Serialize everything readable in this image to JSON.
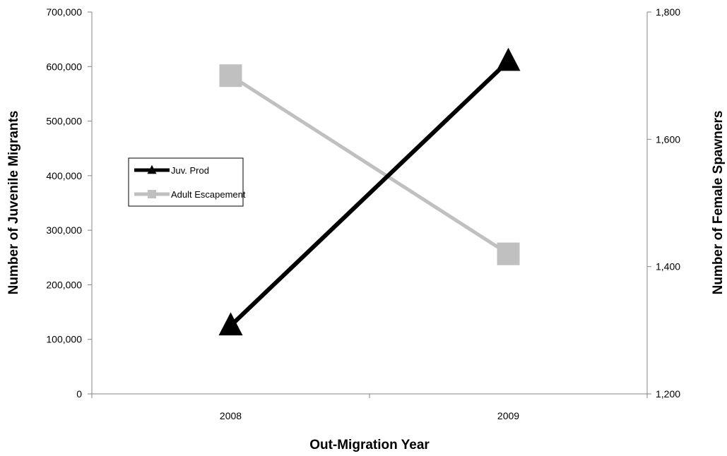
{
  "chart_data": {
    "type": "line",
    "x": [
      "2008",
      "2009"
    ],
    "xlabel": "Out-Migration Year",
    "ylabel_left": "Number of Juvenile Migrants",
    "ylabel_right": "Number of Female Spawners",
    "ylim_left": [
      0,
      700000
    ],
    "ylim_right": [
      1200,
      1800
    ],
    "yticks_left": [
      "0",
      "100,000",
      "200,000",
      "300,000",
      "400,000",
      "500,000",
      "600,000",
      "700,000"
    ],
    "yticks_right": [
      "1,200",
      "1,400",
      "1,600",
      "1,800"
    ],
    "grid": false,
    "legend_position": "left-middle",
    "series": [
      {
        "name": "Juv. Prod",
        "axis": "left",
        "values": [
          125000,
          610000
        ],
        "color": "#000000",
        "marker": "triangle"
      },
      {
        "name": "Adult Escapement",
        "axis": "right",
        "values": [
          1700,
          1420
        ],
        "color": "#c0c0c0",
        "marker": "square"
      }
    ]
  }
}
